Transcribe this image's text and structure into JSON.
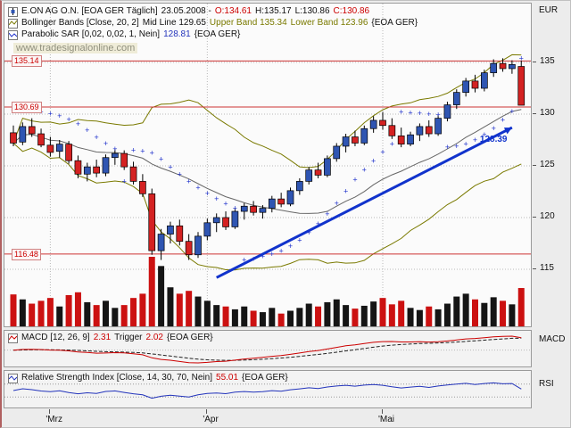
{
  "header": {
    "instrument": {
      "title": "E.ON AG O.N. [EOA GER Täglich]",
      "date": "23.05.2008 -",
      "open": "O:134.61",
      "high": "H:135.17",
      "low": "L:130.86",
      "close": "C:130.86"
    },
    "bollinger": {
      "title": "Bollinger Bands [Close, 20, 2]",
      "mid": "Mid Line 129.65",
      "upper": "Upper Band 135.34",
      "lower": "Lower Band 123.96",
      "suffix": "{EOA GER}"
    },
    "sar": {
      "title": "Parabolic SAR [0,02, 0,02, 1, Nein]",
      "value": "128.81",
      "suffix": "{EOA GER}"
    }
  },
  "watermark": "www.tradesignalonline.com",
  "price_axis": {
    "unit": "EUR",
    "ticks": [
      135,
      130,
      125,
      120,
      115
    ]
  },
  "macd_panel": {
    "title": "MACD [12, 26, 9]",
    "value": "2.31",
    "trigger_label": "Trigger",
    "trigger": "2.02",
    "suffix": "{EOA GER}",
    "axis_label": "MACD"
  },
  "rsi_panel": {
    "title": "Relative Strength Index [Close, 14, 30, 70, Nein]",
    "value": "55.01",
    "suffix": "{EOA GER}",
    "axis_label": "RSI"
  },
  "colors": {
    "up": "#2f55b2",
    "down": "#d42222",
    "volume_up": "#151515",
    "volume_down": "#cc1111",
    "bollinger": "#7a7a00",
    "midline": "#666666",
    "hline": "#cc3333",
    "trend": "#1133cc",
    "sar": "#2233cc",
    "macd_line": "#cc0000",
    "trigger_line": "#222222",
    "rsi_line": "#2233bb",
    "grid": "#b8b8b8"
  },
  "chart_data": {
    "type": "candlestick",
    "title": "E.ON AG O.N. daily with Bollinger Bands, Parabolic SAR, volume, MACD and RSI",
    "ylim": [
      113.5,
      137
    ],
    "candles": [
      [
        128.2,
        128.9,
        126.9,
        127.2
      ],
      [
        127.3,
        129.2,
        127.0,
        128.8
      ],
      [
        128.8,
        129.6,
        127.8,
        128.1
      ],
      [
        128.1,
        128.6,
        126.8,
        127.0
      ],
      [
        127.0,
        127.8,
        125.9,
        126.3
      ],
      [
        126.4,
        127.5,
        125.8,
        127.1
      ],
      [
        127.1,
        127.4,
        125.2,
        125.5
      ],
      [
        125.5,
        126.0,
        123.8,
        124.2
      ],
      [
        124.2,
        125.3,
        123.5,
        124.9
      ],
      [
        124.9,
        125.6,
        123.9,
        124.3
      ],
      [
        124.3,
        126.1,
        124.0,
        125.8
      ],
      [
        125.8,
        126.6,
        125.1,
        126.2
      ],
      [
        126.2,
        126.5,
        124.6,
        124.9
      ],
      [
        124.9,
        125.4,
        123.2,
        123.5
      ],
      [
        123.5,
        124.2,
        122.0,
        122.3
      ],
      [
        122.3,
        122.8,
        116.4,
        116.8
      ],
      [
        116.8,
        118.9,
        115.9,
        118.4
      ],
      [
        118.4,
        119.6,
        117.5,
        119.2
      ],
      [
        119.2,
        119.8,
        117.3,
        117.7
      ],
      [
        117.7,
        118.4,
        115.9,
        116.4
      ],
      [
        116.4,
        118.6,
        116.1,
        118.2
      ],
      [
        118.2,
        119.9,
        117.8,
        119.5
      ],
      [
        119.5,
        120.4,
        118.6,
        120.0
      ],
      [
        120.0,
        120.6,
        118.8,
        119.1
      ],
      [
        119.1,
        120.9,
        118.9,
        120.6
      ],
      [
        120.6,
        121.4,
        119.8,
        121.1
      ],
      [
        121.1,
        121.6,
        120.2,
        120.5
      ],
      [
        120.5,
        121.2,
        119.9,
        120.9
      ],
      [
        120.9,
        122.1,
        120.5,
        121.8
      ],
      [
        121.8,
        122.4,
        121.0,
        121.3
      ],
      [
        121.3,
        122.9,
        121.1,
        122.6
      ],
      [
        122.6,
        123.8,
        122.2,
        123.5
      ],
      [
        123.5,
        124.9,
        123.2,
        124.6
      ],
      [
        124.6,
        125.3,
        123.8,
        124.1
      ],
      [
        124.1,
        126.0,
        123.9,
        125.7
      ],
      [
        125.7,
        127.2,
        125.4,
        126.9
      ],
      [
        126.9,
        128.1,
        126.3,
        127.8
      ],
      [
        127.8,
        128.4,
        126.9,
        127.2
      ],
      [
        127.2,
        128.9,
        127.0,
        128.6
      ],
      [
        128.6,
        129.8,
        128.2,
        129.4
      ],
      [
        129.4,
        130.2,
        128.5,
        128.9
      ],
      [
        128.9,
        129.6,
        127.6,
        127.9
      ],
      [
        127.9,
        128.7,
        126.8,
        127.1
      ],
      [
        127.1,
        128.3,
        126.9,
        128.0
      ],
      [
        128.0,
        129.1,
        127.4,
        128.8
      ],
      [
        128.8,
        129.4,
        127.8,
        128.1
      ],
      [
        128.1,
        129.9,
        127.9,
        129.6
      ],
      [
        129.6,
        131.2,
        129.3,
        130.9
      ],
      [
        130.9,
        132.4,
        130.5,
        132.1
      ],
      [
        132.1,
        133.5,
        131.7,
        133.2
      ],
      [
        133.2,
        133.8,
        132.1,
        132.5
      ],
      [
        132.5,
        134.3,
        132.2,
        134.0
      ],
      [
        134.0,
        135.3,
        133.6,
        134.9
      ],
      [
        134.9,
        135.4,
        134.1,
        134.4
      ],
      [
        134.4,
        135.2,
        133.9,
        134.8
      ],
      [
        134.61,
        135.17,
        130.86,
        130.86
      ]
    ],
    "volume": [
      4.5,
      3.8,
      3.2,
      3.6,
      4.0,
      2.8,
      4.4,
      4.8,
      3.4,
      3.0,
      3.6,
      2.6,
      3.0,
      4.0,
      4.6,
      9.8,
      8.5,
      5.5,
      4.6,
      5.0,
      4.2,
      3.6,
      3.0,
      2.8,
      2.4,
      2.8,
      2.2,
      2.0,
      2.6,
      1.8,
      2.2,
      2.6,
      3.2,
      2.8,
      3.4,
      3.8,
      3.0,
      2.5,
      2.9,
      3.5,
      4.0,
      3.1,
      3.6,
      2.6,
      2.3,
      2.8,
      2.4,
      3.2,
      4.2,
      4.6,
      3.8,
      3.3,
      4.1,
      3.6,
      3.1,
      5.4
    ],
    "month_marks": [
      {
        "label": "'Mrz",
        "index": 4
      },
      {
        "label": "'Apr",
        "index": 21
      },
      {
        "label": "'Mai",
        "index": 40
      }
    ],
    "hlines": [
      {
        "label": "135.14",
        "value": 135.14
      },
      {
        "label": "130.69",
        "value": 130.69
      },
      {
        "label": "116.48",
        "value": 116.48
      }
    ],
    "trendline": {
      "from_index": 22,
      "from_price": 114.2,
      "to_index": 54,
      "to_price": 128.7,
      "label": "128.39"
    },
    "indicators": {
      "bollinger": [
        20,
        2
      ],
      "macd": [
        12,
        26,
        9
      ],
      "rsi": [
        14,
        30,
        70
      ],
      "sar": [
        0.02,
        0.02,
        1
      ]
    }
  }
}
